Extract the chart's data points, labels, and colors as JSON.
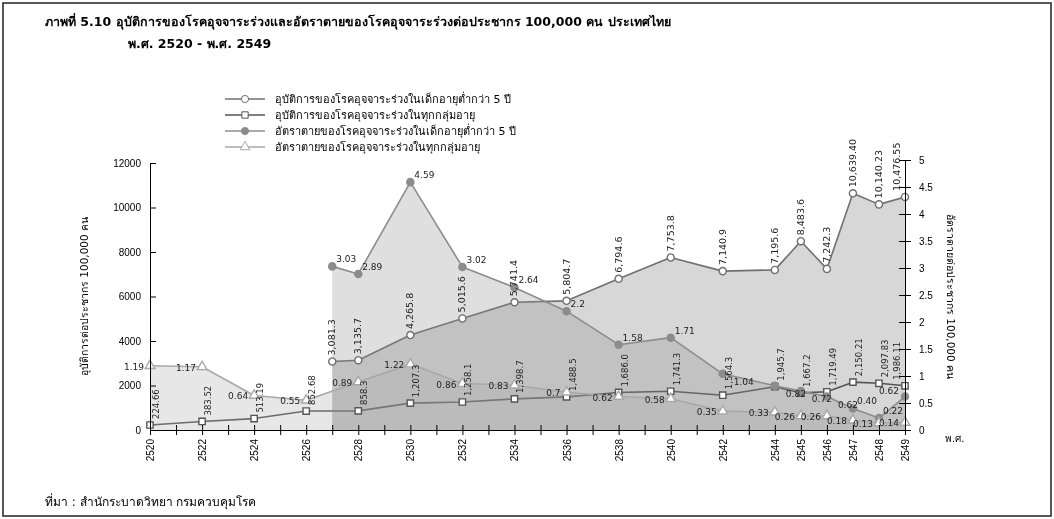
{
  "chart_data": {
    "type": "line",
    "title": "ภาพที่ 5.10 อุบัติการของโรคอุจจาระร่วงและอัตราตายของโรคอุจจาระร่วงต่อประชากร 100,000 คน ประเทศไทย",
    "subtitle": "พ.ศ. 2520 - พ.ศ. 2549",
    "xlabel": "พ.ศ.",
    "ylabel": "อุบัติการต่อประชากร 100,000 คน",
    "y2label": "อัตราตายต่อประชากร 100,000 คน",
    "annotations": [
      "ที่มา : สำนักระบาดวิทยา กรมควบคุมโรค"
    ],
    "xlim": [
      2520,
      2549
    ],
    "xticks": [
      2520,
      {
        "value": 2521,
        "label": null
      },
      2522,
      {
        "value": 2523,
        "label": null
      },
      2524,
      {
        "value": 2525,
        "label": null
      },
      2526,
      {
        "value": 2527,
        "label": null
      },
      2528,
      {
        "value": 2529,
        "label": null
      },
      2530,
      {
        "value": 2531,
        "label": null
      },
      2532,
      {
        "value": 2533,
        "label": null
      },
      2534,
      {
        "value": 2535,
        "label": null
      },
      2536,
      {
        "value": 2537,
        "label": null
      },
      2538,
      {
        "value": 2539,
        "label": null
      },
      2540,
      {
        "value": 2541,
        "label": null
      },
      2542,
      {
        "value": 2543,
        "label": null
      },
      2544,
      2545,
      2546,
      2547,
      2548,
      2549
    ],
    "ylim": [
      0,
      12000
    ],
    "yticks": [
      0,
      2000,
      4000,
      6000,
      8000,
      10000,
      12000
    ],
    "y2lim": [
      0,
      5
    ],
    "y2ticks": [
      0,
      0.5,
      1,
      1.5,
      2,
      2.5,
      3,
      3.5,
      4,
      4.5,
      5
    ],
    "legend": "top",
    "grid": false,
    "series": [
      {
        "name": "อุบัติการของโรคอุจจาระร่วงในเด็กอายุต่ำกว่า 5 ปี",
        "type": "area",
        "color": "#707070",
        "marker": "circle",
        "x": [
          2527,
          2528,
          2530,
          2532,
          2534,
          2536,
          2538,
          2540,
          2542,
          2544,
          2545,
          2546,
          2547,
          2548,
          2549
        ],
        "values": [
          3081.3,
          3135.7,
          4265.8,
          5015.6,
          5741.4,
          5804.7,
          6794.6,
          7753.8,
          7140.9,
          7195.6,
          8483.6,
          7242.3,
          10639.4,
          10140.23,
          10476.55
        ],
        "value_labels": [
          "3,081.3",
          "3,135.7",
          "4,265.8",
          "5,015.6",
          "5,741.4",
          "5,804.7",
          "6,794.6",
          "7,753.8",
          "7,140.9",
          "7,195.6",
          "8,483.6",
          "7,242.3",
          "10,639.40",
          "10,140.23",
          "10,476.55"
        ]
      },
      {
        "name": "อุบัติการของโรคอุจจาระร่วงในทุกกลุ่มอายุ",
        "color": "#555555",
        "marker": "square",
        "x": [
          2520,
          2522,
          2524,
          2526,
          2528,
          2530,
          2532,
          2534,
          2536,
          2538,
          2540,
          2542,
          2544,
          2545,
          2546,
          2547,
          2548,
          2549
        ],
        "values": [
          224.66,
          383.52,
          513.19,
          852.68,
          858.3,
          1207.3,
          1258.1,
          1398.7,
          1488.5,
          1686.0,
          1741.3,
          1564.3,
          1945.7,
          1667.2,
          1719.49,
          2150.21,
          2097.83,
          1986.11
        ],
        "value_labels": [
          "224.66",
          "383.52",
          "513.19",
          "852.68",
          "858.3",
          "1,207.3",
          "1,258.1",
          "1,398.7",
          "1,488.5",
          "1,686.0",
          "1,741.3",
          "1,564.3",
          "1,945.7",
          "1,667.2",
          "1,719.49",
          "2,150.21",
          "2,097.83",
          "1,986.11"
        ]
      },
      {
        "name": "อัตราตายของโรคอุจจาระร่วงในเด็กอายุต่ำกว่า 5 ปี",
        "type": "area",
        "axis": "y2",
        "color": "#8c8c8c",
        "marker": "circle",
        "x": [
          2527,
          2528,
          2530,
          2532,
          2534,
          2536,
          2538,
          2540,
          2542,
          2544,
          2545,
          2546,
          2547,
          2548,
          2549
        ],
        "values": [
          3.03,
          2.89,
          4.59,
          3.02,
          2.64,
          2.2,
          1.58,
          1.71,
          1.04,
          0.82,
          0.72,
          0.62,
          0.4,
          0.22,
          0.62
        ],
        "value_labels": [
          "3.03",
          "2.89",
          "4.59",
          "3.02",
          "2.64",
          "2.2",
          "1.58",
          "1.71",
          "1.04",
          "0.82",
          "0.72",
          "0.62",
          "0.40",
          "0.22",
          "0.62"
        ]
      },
      {
        "name": "อัตราตายของโรคอุจจาระร่วงในทุกกลุ่มอายุ",
        "type": "area",
        "axis": "y2",
        "color": "#a8a8a8",
        "marker": "triangle",
        "x": [
          2520,
          2522,
          2524,
          2526,
          2528,
          2530,
          2532,
          2534,
          2536,
          2538,
          2540,
          2542,
          2544,
          2545,
          2546,
          2547,
          2548,
          2549
        ],
        "values": [
          1.19,
          1.17,
          0.64,
          0.55,
          0.89,
          1.22,
          0.86,
          0.83,
          0.7,
          0.62,
          0.58,
          0.35,
          0.33,
          0.26,
          0.26,
          0.18,
          0.13,
          0.14
        ],
        "value_labels": [
          "1.19",
          "1.17",
          "0.64",
          "0.55",
          "0.89",
          "1.22",
          "0.86",
          "0.83",
          "0.7",
          "0.62",
          "0.58",
          "0.35",
          "0.33",
          "0.26",
          "0.26",
          "0.18",
          "0.13",
          "0.14"
        ]
      }
    ]
  }
}
